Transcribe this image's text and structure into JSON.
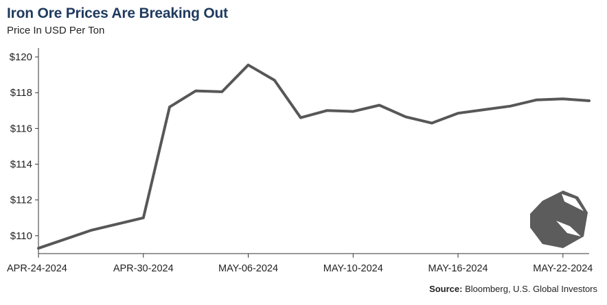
{
  "header": {
    "title": "Iron Ore Prices Are Breaking Out",
    "subtitle": "Price In USD Per Ton"
  },
  "footer": {
    "source_label": "Source:",
    "source_text": " Bloomberg, U.S. Global Investors"
  },
  "chart_data": {
    "type": "line",
    "title": "Iron Ore Prices Are Breaking Out",
    "subtitle": "Price In USD Per Ton",
    "xlabel": "",
    "ylabel": "",
    "ylim": [
      109,
      120.5
    ],
    "y_ticks": [
      110,
      112,
      114,
      116,
      118,
      120
    ],
    "y_tick_labels": [
      "$110",
      "$112",
      "$114",
      "$116",
      "$118",
      "$120"
    ],
    "x_tick_labels": [
      "APR-24-2024",
      "APR-30-2024",
      "MAY-06-2024",
      "MAY-10-2024",
      "MAY-16-2024",
      "MAY-22-2024"
    ],
    "x_tick_index": [
      0,
      4,
      8,
      12,
      16,
      20
    ],
    "grid": false,
    "line_color": "#575757",
    "series": [
      {
        "values": [
          109.3,
          110.3,
          111.0,
          117.2,
          118.1,
          118.05,
          119.55,
          118.7,
          116.6,
          117.0,
          116.95,
          117.3,
          116.65,
          116.3,
          116.85,
          117.05,
          117.25,
          117.6,
          117.65,
          117.55
        ],
        "x_index": [
          0,
          2,
          4,
          5,
          6,
          7,
          8,
          9,
          10,
          11,
          12,
          13,
          14,
          15,
          16,
          17,
          18,
          19,
          20,
          21
        ]
      }
    ]
  }
}
